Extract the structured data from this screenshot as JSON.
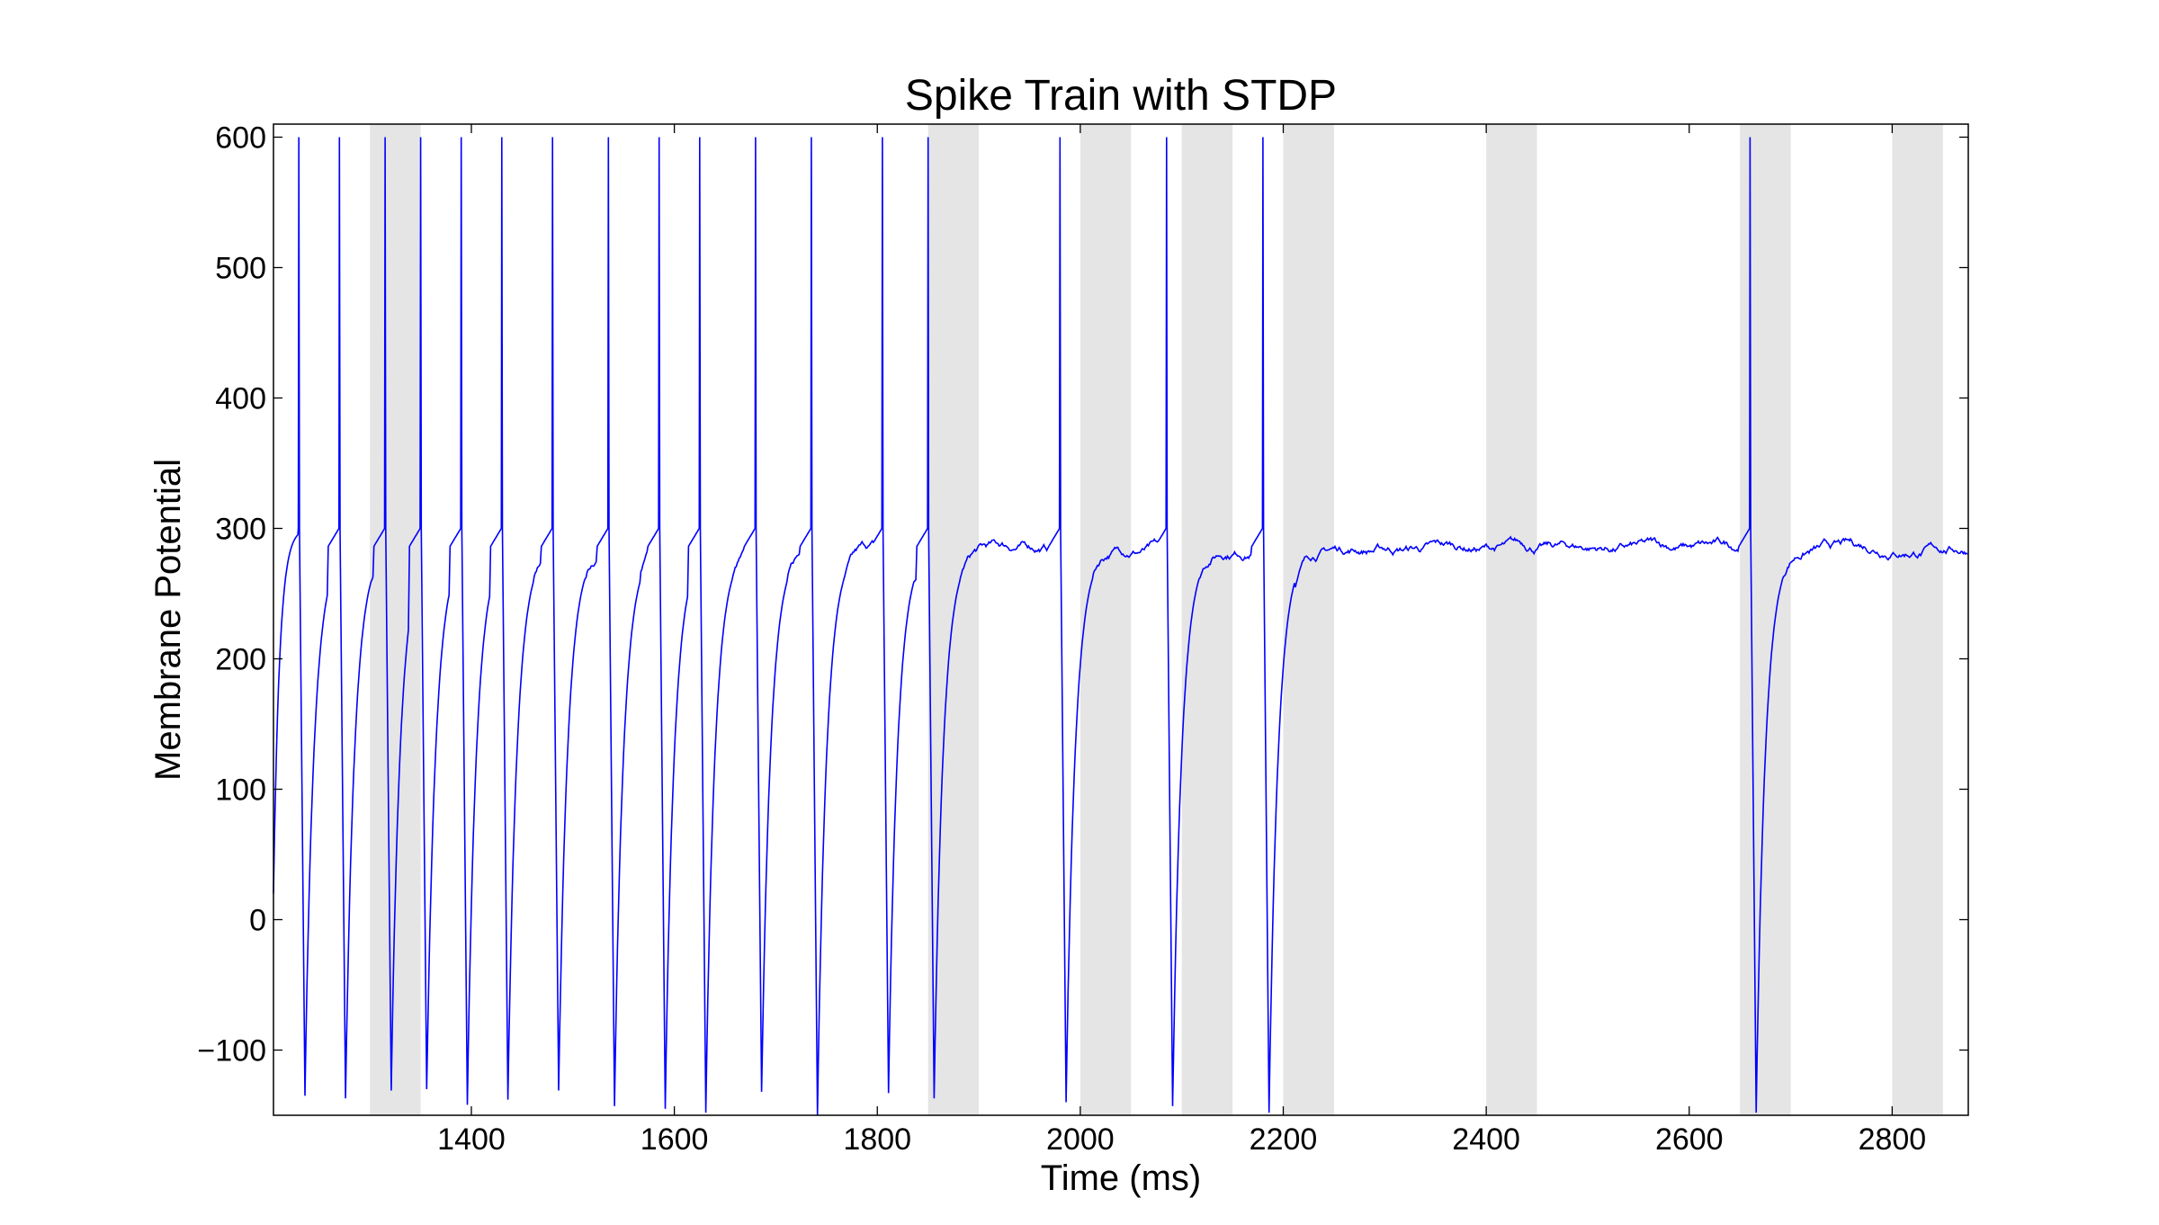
{
  "chart_data": {
    "type": "line",
    "title": "Spike Train with STDP",
    "xlabel": "Time (ms)",
    "ylabel": "Membrane Potential",
    "xlim": [
      1205,
      2875
    ],
    "ylim": [
      -150,
      610
    ],
    "xticks": [
      1400,
      1600,
      1800,
      2000,
      2200,
      2400,
      2600,
      2800
    ],
    "yticks": [
      -100,
      0,
      100,
      200,
      300,
      400,
      500,
      600
    ],
    "xtick_labels": [
      "1400",
      "1600",
      "1800",
      "2000",
      "2200",
      "2400",
      "2600",
      "2800"
    ],
    "ytick_labels": [
      "−100",
      "0",
      "100",
      "200",
      "300",
      "400",
      "500",
      "600"
    ],
    "grid": false,
    "shaded_intervals": [
      [
        1300,
        1350
      ],
      [
        1850,
        1900
      ],
      [
        2000,
        2050
      ],
      [
        2100,
        2150
      ],
      [
        2200,
        2250
      ],
      [
        2400,
        2450
      ],
      [
        2650,
        2700
      ],
      [
        2800,
        2850
      ]
    ],
    "spike_times": [
      1230,
      1270,
      1315,
      1350,
      1390,
      1430,
      1480,
      1535,
      1585,
      1625,
      1680,
      1735,
      1805,
      1850,
      1980,
      2085,
      2180,
      2660
    ],
    "spike_peak": 600,
    "reset_minima": [
      -135,
      -137,
      -131,
      -130,
      -142,
      -138,
      -131,
      -143,
      -145,
      -148,
      -132,
      -150,
      -133,
      -137,
      -140,
      -143,
      -148
    ],
    "final_minimum": -148,
    "series": [
      {
        "color": "#0000ff"
      }
    ]
  }
}
